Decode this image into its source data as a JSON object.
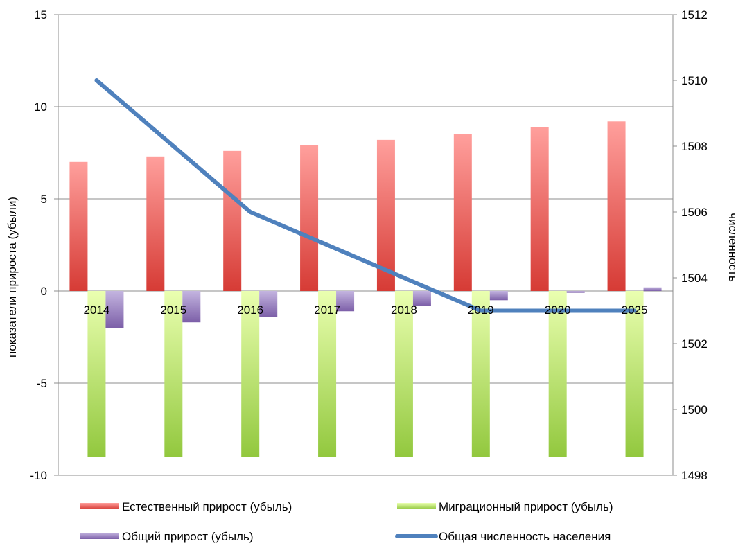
{
  "chart_data": {
    "type": "bar",
    "categories": [
      "2014",
      "2015",
      "2016",
      "2017",
      "2018",
      "2019",
      "2020",
      "2025"
    ],
    "series": [
      {
        "name": "Естественный прирост (убыль)",
        "type": "bar",
        "axis": "left",
        "values": [
          7.0,
          7.3,
          7.6,
          7.9,
          8.2,
          8.5,
          8.9,
          9.2
        ],
        "color": "#e03a3a"
      },
      {
        "name": "Миграционный прирост (убыль)",
        "type": "bar",
        "axis": "left",
        "values": [
          -9,
          -9,
          -9,
          -9,
          -9,
          -9,
          -9,
          -9
        ],
        "color": "#9acd3c"
      },
      {
        "name": "Общий прирост (убыль)",
        "type": "bar",
        "axis": "left",
        "values": [
          -2.0,
          -1.7,
          -1.4,
          -1.1,
          -0.8,
          -0.5,
          -0.1,
          0.2
        ],
        "color": "#8064a2"
      },
      {
        "name": "Общая численность населения",
        "type": "line",
        "axis": "right",
        "values": [
          1510,
          1508,
          1506,
          1505,
          1504,
          1503,
          1503,
          1503
        ],
        "color": "#4f81bd"
      }
    ],
    "ylabel": "показатели прироста (убыли)",
    "y2label": "численность",
    "ylim": [
      -10,
      15
    ],
    "y2lim": [
      1498,
      1512
    ],
    "yticks": [
      "15",
      "10",
      "5",
      "0",
      "-5",
      "-10"
    ],
    "y2ticks": [
      "1512",
      "1510",
      "1508",
      "1506",
      "1504",
      "1502",
      "1500",
      "1498"
    ],
    "grid": true,
    "legend_position": "bottom"
  }
}
